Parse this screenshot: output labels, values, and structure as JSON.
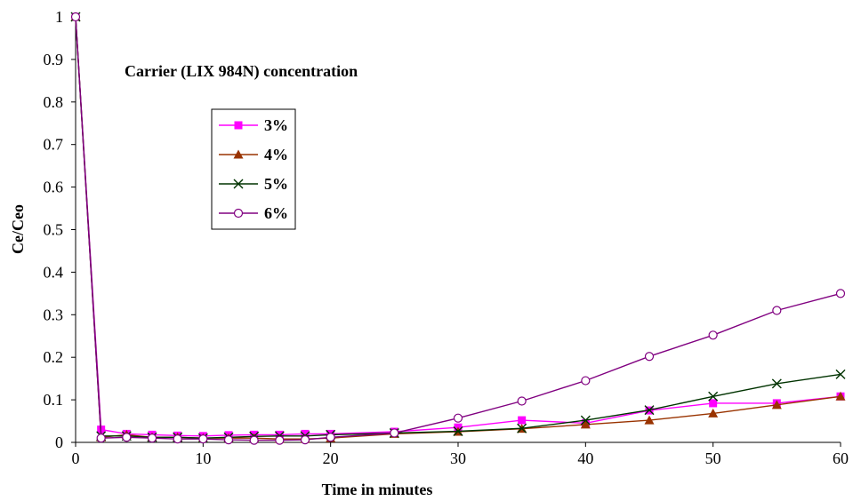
{
  "chart_data": {
    "type": "line",
    "title": "Carrier (LIX 984N) concentration",
    "xlabel": "Time in minutes",
    "ylabel": "Ce/Ceo",
    "xlim": [
      0,
      60
    ],
    "ylim": [
      0,
      1
    ],
    "x_ticks": [
      "0",
      "10",
      "20",
      "30",
      "40",
      "50",
      "60"
    ],
    "y_ticks": [
      "0",
      "0.1",
      "0.2",
      "0.3",
      "0.4",
      "0.5",
      "0.6",
      "0.7",
      "0.8",
      "0.9",
      "1"
    ],
    "grid": false,
    "legend_position": "upper-left inside plot",
    "series": [
      {
        "name": "3%",
        "color": "#ff00ff",
        "marker": "square",
        "x": [
          0,
          2,
          4,
          6,
          8,
          10,
          12,
          14,
          16,
          18,
          20,
          25,
          30,
          35,
          40,
          45,
          50,
          55,
          60
        ],
        "y": [
          1.0,
          0.03,
          0.02,
          0.018,
          0.016,
          0.015,
          0.017,
          0.018,
          0.018,
          0.02,
          0.02,
          0.025,
          0.035,
          0.052,
          0.045,
          0.075,
          0.092,
          0.092,
          0.108
        ]
      },
      {
        "name": "4%",
        "color": "#993300",
        "marker": "triangle",
        "x": [
          0,
          2,
          4,
          6,
          8,
          10,
          12,
          14,
          16,
          18,
          20,
          25,
          30,
          35,
          40,
          45,
          50,
          55,
          60
        ],
        "y": [
          1.0,
          0.012,
          0.018,
          0.012,
          0.012,
          0.01,
          0.01,
          0.01,
          0.008,
          0.008,
          0.01,
          0.02,
          0.025,
          0.032,
          0.042,
          0.052,
          0.068,
          0.088,
          0.108
        ]
      },
      {
        "name": "5%",
        "color": "#003300",
        "marker": "x",
        "x": [
          0,
          2,
          4,
          6,
          8,
          10,
          12,
          14,
          16,
          18,
          20,
          25,
          30,
          35,
          40,
          45,
          50,
          55,
          60
        ],
        "y": [
          1.0,
          0.015,
          0.015,
          0.012,
          0.012,
          0.01,
          0.012,
          0.014,
          0.015,
          0.015,
          0.018,
          0.022,
          0.026,
          0.033,
          0.052,
          0.076,
          0.108,
          0.138,
          0.16
        ]
      },
      {
        "name": "6%",
        "color": "#800080",
        "marker": "circle",
        "x": [
          0,
          2,
          4,
          6,
          8,
          10,
          12,
          14,
          16,
          18,
          20,
          25,
          30,
          35,
          40,
          45,
          50,
          55,
          60
        ],
        "y": [
          1.0,
          0.01,
          0.012,
          0.01,
          0.008,
          0.008,
          0.006,
          0.005,
          0.005,
          0.006,
          0.012,
          0.022,
          0.057,
          0.097,
          0.145,
          0.202,
          0.252,
          0.31,
          0.35
        ]
      }
    ]
  }
}
